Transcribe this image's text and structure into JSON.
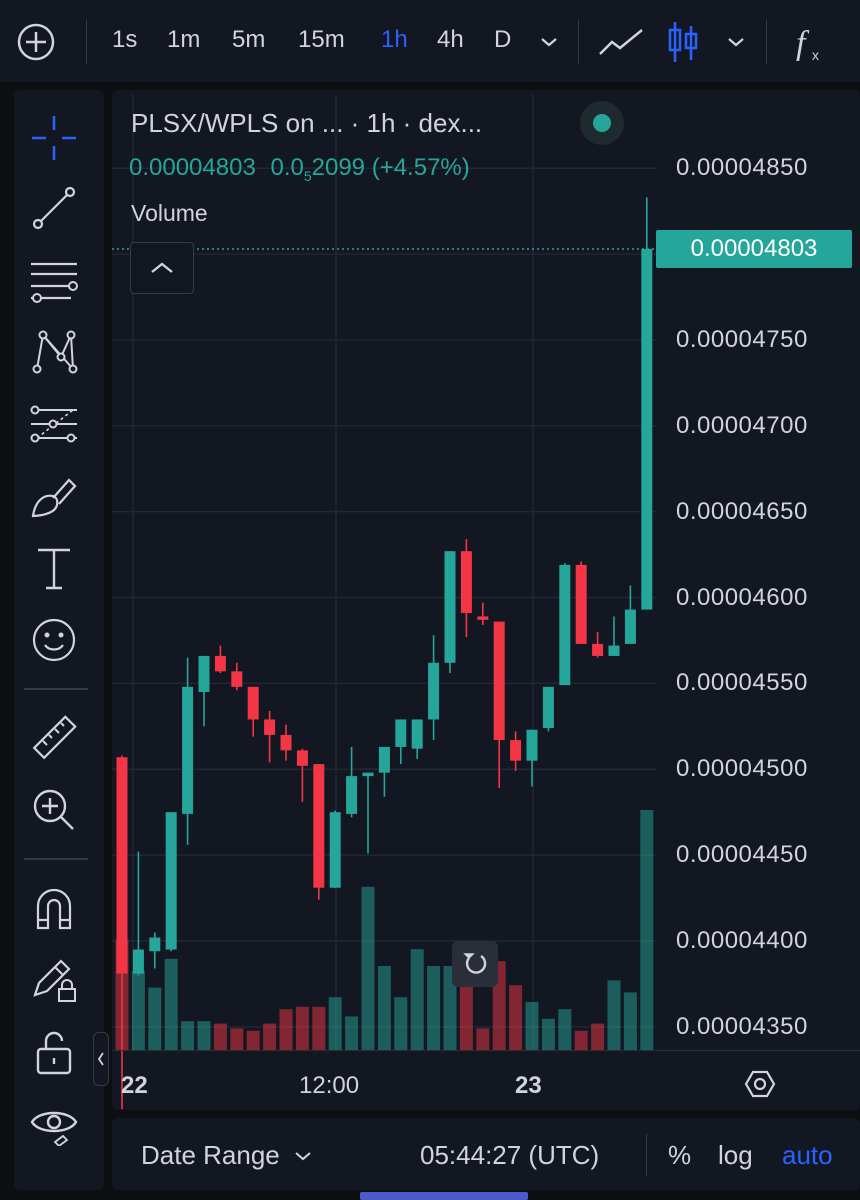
{
  "toolbar": {
    "timeframes": [
      "1s",
      "1m",
      "5m",
      "15m",
      "1h",
      "4h",
      "D"
    ],
    "active_timeframe": "1h",
    "icons": [
      "add-icon",
      "chevron-down-icon",
      "line-chart-icon",
      "candles-icon",
      "chevron-down-icon",
      "indicators-icon"
    ]
  },
  "left_tools": [
    "crosshair-icon",
    "trendline-icon",
    "fib-icon",
    "pattern-icon",
    "prediction-icon",
    "brush-icon",
    "text-icon",
    "emoji-icon",
    "ruler-icon",
    "zoom-in-icon",
    "magnet-icon",
    "lock-drawing-icon",
    "unlock-icon",
    "eye-icon"
  ],
  "chart": {
    "symbol_title": "PLSX/WPLS on ... · 1h · dex...",
    "last_price": "0.00004803",
    "change_abs_prefix": "0.0",
    "change_abs_sub": "5",
    "change_abs_suffix": "2099",
    "change_pct": "(+4.57%)",
    "volume_label": "Volume",
    "price_tag": "0.00004803",
    "colors": {
      "up": "#26a69a",
      "down": "#f23645",
      "accent": "#2962ff"
    }
  },
  "bottom": {
    "date_range_label": "Date Range",
    "clock": "05:44:27 (UTC)",
    "percent_label": "%",
    "log_label": "log",
    "auto_label": "auto"
  },
  "chart_data": {
    "type": "candlestick",
    "y_ticks": [
      "0.00004850",
      "0.00004800",
      "0.00004750",
      "0.00004700",
      "0.00004650",
      "0.00004600",
      "0.00004550",
      "0.00004500",
      "0.00004450",
      "0.00004400",
      "0.00004350"
    ],
    "x_ticks": [
      "22",
      "12:00",
      "23"
    ],
    "ylim": [
      4.3365e-05,
      4.8618e-05
    ],
    "candles": [
      {
        "o": 4.507e-05,
        "h": 4.508e-05,
        "l": 4.302e-05,
        "c": 4.381e-05
      },
      {
        "o": 4.381e-05,
        "h": 4.452e-05,
        "l": 4.38e-05,
        "c": 4.395e-05
      },
      {
        "o": 4.394e-05,
        "h": 4.405e-05,
        "l": 4.384e-05,
        "c": 4.402e-05
      },
      {
        "o": 4.395e-05,
        "h": 4.475e-05,
        "l": 4.394e-05,
        "c": 4.475e-05
      },
      {
        "o": 4.474e-05,
        "h": 4.565e-05,
        "l": 4.456e-05,
        "c": 4.548e-05
      },
      {
        "o": 4.545e-05,
        "h": 4.566e-05,
        "l": 4.525e-05,
        "c": 4.566e-05
      },
      {
        "o": 4.566e-05,
        "h": 4.572e-05,
        "l": 4.556e-05,
        "c": 4.557e-05
      },
      {
        "o": 4.557e-05,
        "h": 4.562e-05,
        "l": 4.546e-05,
        "c": 4.548e-05
      },
      {
        "o": 4.548e-05,
        "h": 4.548e-05,
        "l": 4.519e-05,
        "c": 4.529e-05
      },
      {
        "o": 4.529e-05,
        "h": 4.534e-05,
        "l": 4.504e-05,
        "c": 4.52e-05
      },
      {
        "o": 4.52e-05,
        "h": 4.526e-05,
        "l": 4.505e-05,
        "c": 4.511e-05
      },
      {
        "o": 4.511e-05,
        "h": 4.512e-05,
        "l": 4.481e-05,
        "c": 4.502e-05
      },
      {
        "o": 4.503e-05,
        "h": 4.503e-05,
        "l": 4.424e-05,
        "c": 4.431e-05
      },
      {
        "o": 4.431e-05,
        "h": 4.476e-05,
        "l": 4.431e-05,
        "c": 4.475e-05
      },
      {
        "o": 4.474e-05,
        "h": 4.513e-05,
        "l": 4.472e-05,
        "c": 4.496e-05
      },
      {
        "o": 4.496e-05,
        "h": 4.498e-05,
        "l": 4.451e-05,
        "c": 4.498e-05
      },
      {
        "o": 4.498e-05,
        "h": 4.511e-05,
        "l": 4.484e-05,
        "c": 4.513e-05
      },
      {
        "o": 4.513e-05,
        "h": 4.529e-05,
        "l": 4.503e-05,
        "c": 4.529e-05
      },
      {
        "o": 4.512e-05,
        "h": 4.529e-05,
        "l": 4.506e-05,
        "c": 4.529e-05
      },
      {
        "o": 4.529e-05,
        "h": 4.578e-05,
        "l": 4.517e-05,
        "c": 4.562e-05
      },
      {
        "o": 4.562e-05,
        "h": 4.627e-05,
        "l": 4.556e-05,
        "c": 4.627e-05
      },
      {
        "o": 4.627e-05,
        "h": 4.634e-05,
        "l": 4.577e-05,
        "c": 4.591e-05
      },
      {
        "o": 4.589e-05,
        "h": 4.597e-05,
        "l": 4.584e-05,
        "c": 4.587e-05
      },
      {
        "o": 4.586e-05,
        "h": 4.586e-05,
        "l": 4.489e-05,
        "c": 4.517e-05
      },
      {
        "o": 4.517e-05,
        "h": 4.522e-05,
        "l": 4.499e-05,
        "c": 4.505e-05
      },
      {
        "o": 4.505e-05,
        "h": 4.523e-05,
        "l": 4.49e-05,
        "c": 4.523e-05
      },
      {
        "o": 4.524e-05,
        "h": 4.548e-05,
        "l": 4.522e-05,
        "c": 4.548e-05
      },
      {
        "o": 4.549e-05,
        "h": 4.62e-05,
        "l": 4.549e-05,
        "c": 4.619e-05
      },
      {
        "o": 4.619e-05,
        "h": 4.621e-05,
        "l": 4.573e-05,
        "c": 4.573e-05
      },
      {
        "o": 4.573e-05,
        "h": 4.58e-05,
        "l": 4.565e-05,
        "c": 4.566e-05
      },
      {
        "o": 4.566e-05,
        "h": 4.589e-05,
        "l": 4.566e-05,
        "c": 4.572e-05
      },
      {
        "o": 4.573e-05,
        "h": 4.607e-05,
        "l": 4.573e-05,
        "c": 4.593e-05
      },
      {
        "o": 4.593e-05,
        "h": 4.833e-05,
        "l": 4.593e-05,
        "c": 4.803e-05
      }
    ],
    "volume_relative": [
      0.46,
      0.33,
      0.26,
      0.38,
      0.12,
      0.12,
      0.11,
      0.09,
      0.08,
      0.11,
      0.17,
      0.18,
      0.18,
      0.22,
      0.14,
      0.68,
      0.35,
      0.22,
      0.42,
      0.35,
      0.35,
      0.34,
      0.09,
      0.37,
      0.27,
      0.2,
      0.13,
      0.17,
      0.08,
      0.11,
      0.29,
      0.24,
      1.0
    ]
  }
}
